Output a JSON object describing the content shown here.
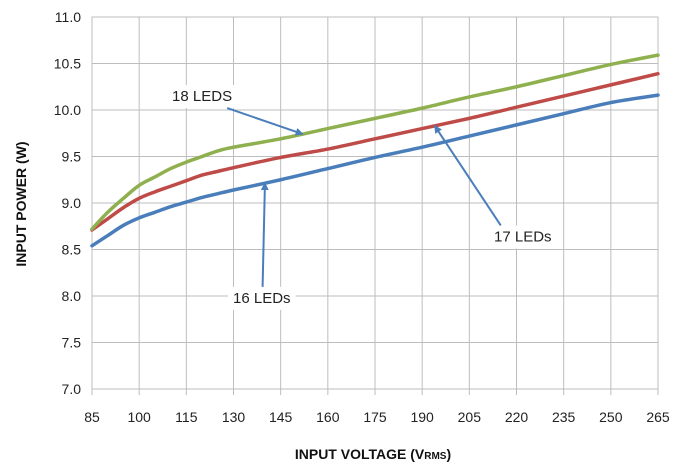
{
  "chart_data": {
    "type": "line",
    "title": "",
    "xlabel": "INPUT VOLTAGE (V",
    "xlabel_sub": "RMS",
    "xlabel_close": ")",
    "ylabel": "INPUT POWER (W)",
    "xlim": [
      85,
      265
    ],
    "ylim": [
      7.0,
      11.0
    ],
    "x_ticks": [
      "85",
      "100",
      "115",
      "130",
      "145",
      "160",
      "175",
      "190",
      "205",
      "220",
      "235",
      "250",
      "265"
    ],
    "y_ticks": [
      "7.0",
      "7.5",
      "8.0",
      "8.5",
      "9.0",
      "9.5",
      "10.0",
      "10.5",
      "11.0"
    ],
    "grid": true,
    "x": [
      85,
      90,
      95,
      100,
      105,
      110,
      115,
      120,
      125,
      130,
      145,
      160,
      175,
      190,
      205,
      220,
      235,
      250,
      265
    ],
    "series": [
      {
        "color": "#4a7ebb",
        "values": [
          8.54,
          8.65,
          8.76,
          8.84,
          8.9,
          8.96,
          9.01,
          9.06,
          9.1,
          9.14,
          9.25,
          9.37,
          9.49,
          9.6,
          9.72,
          9.84,
          9.96,
          10.08,
          10.16
        ]
      },
      {
        "color": "#be4b48",
        "values": [
          8.71,
          8.83,
          8.95,
          9.05,
          9.12,
          9.18,
          9.24,
          9.3,
          9.34,
          9.38,
          9.49,
          9.58,
          9.69,
          9.8,
          9.91,
          10.03,
          10.15,
          10.27,
          10.39
        ]
      },
      {
        "color": "#8fb04e",
        "values": [
          8.72,
          8.9,
          9.05,
          9.19,
          9.28,
          9.37,
          9.44,
          9.5,
          9.56,
          9.6,
          9.69,
          9.8,
          9.91,
          10.02,
          10.14,
          10.25,
          10.37,
          10.49,
          10.59
        ]
      }
    ],
    "annotations": [
      {
        "text": "18 LEDS",
        "series": 2,
        "point_x": 152,
        "label_x": 120,
        "label_y": 10.15
      },
      {
        "text": "17 LEDs",
        "series": 1,
        "point_x": 194,
        "label_x": 222,
        "label_y": 8.64
      },
      {
        "text": "16 LEDs",
        "series": 0,
        "point_x": 140,
        "label_x": 139,
        "label_y": 7.98
      }
    ],
    "annotation_color": "#4a7ebb"
  }
}
